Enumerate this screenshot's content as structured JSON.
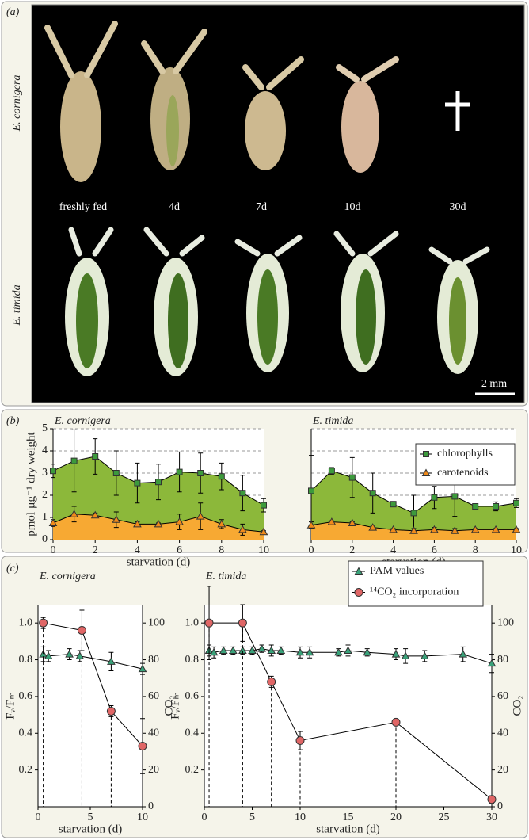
{
  "panels": {
    "a": {
      "label": "(a)",
      "species_top": "E. cornigera",
      "species_bottom": "E. timida",
      "stages": [
        "freshly fed",
        "4d",
        "7d",
        "10d",
        "30d"
      ],
      "scale_bar": "2 mm"
    },
    "b": {
      "label": "(b)"
    },
    "c": {
      "label": "(c)"
    }
  },
  "chart_data": [
    {
      "type": "area",
      "title": "E. cornigera",
      "x_label": "starvation (d)",
      "y_label": "pmol µg⁻¹ dry weight",
      "x": [
        0,
        1,
        2,
        3,
        4,
        5,
        6,
        7,
        8,
        9,
        10
      ],
      "series": [
        {
          "color": "#8cb83a",
          "marker_color": "#3c9a3c",
          "marker": "square",
          "values": [
            3.1,
            3.55,
            3.75,
            3.0,
            2.55,
            2.6,
            3.05,
            3.0,
            2.85,
            2.1,
            1.55
          ],
          "errors": [
            0.3,
            1.4,
            0.8,
            1.0,
            0.9,
            0.8,
            0.9,
            0.9,
            0.6,
            0.8,
            0.3
          ]
        },
        {
          "color": "#f7a933",
          "marker_color": "#f08a1a",
          "marker": "triangle",
          "values": [
            0.75,
            1.15,
            1.1,
            0.9,
            0.7,
            0.7,
            0.8,
            1.05,
            0.7,
            0.45,
            0.35
          ],
          "errors": [
            0.15,
            0.35,
            0.1,
            0.35,
            0.1,
            0.05,
            0.35,
            0.6,
            0.2,
            0.25,
            0.05
          ]
        }
      ],
      "xlim": [
        0,
        10
      ],
      "xticks": [
        0,
        2,
        4,
        6,
        8,
        10
      ],
      "ylim": [
        0,
        5
      ],
      "yticks": [
        0,
        1,
        2,
        3,
        4,
        5
      ],
      "grid": true
    },
    {
      "type": "area",
      "title": "E. timida",
      "x_label": "starvation (d)",
      "x": [
        0,
        1,
        2,
        3,
        4,
        5,
        6,
        7,
        8,
        9,
        10
      ],
      "series": [
        {
          "name": "chlorophylls",
          "color": "#8cb83a",
          "marker_color": "#3c9a3c",
          "marker": "square",
          "values": [
            2.2,
            3.1,
            2.8,
            2.1,
            1.6,
            1.2,
            1.9,
            1.95,
            1.5,
            1.5,
            1.65
          ],
          "errors": [
            1.6,
            0.15,
            0.9,
            0.9,
            0.05,
            0.8,
            0.5,
            0.9,
            0.05,
            0.2,
            0.2
          ]
        },
        {
          "name": "carotenoids",
          "color": "#f7a933",
          "marker_color": "#f08a1a",
          "marker": "triangle",
          "values": [
            0.65,
            0.8,
            0.75,
            0.55,
            0.45,
            0.4,
            0.45,
            0.4,
            0.45,
            0.45,
            0.45
          ],
          "errors": [
            0.15,
            0.05,
            0.05,
            0.1,
            0.05,
            0.1,
            0.1,
            0.1,
            0.05,
            0.05,
            0.05
          ]
        }
      ],
      "xlim": [
        0,
        10
      ],
      "xticks": [
        0,
        2,
        4,
        6,
        8,
        10
      ],
      "ylim": [
        0,
        5
      ],
      "yticks": [
        0,
        1,
        2,
        3,
        4,
        5
      ],
      "ytick_labels": false,
      "grid": true,
      "legend": "upper right"
    },
    {
      "type": "line",
      "title": "E. cornigera",
      "x_label": "starvation (d)",
      "y_label": "Fᵥ/Fₘ",
      "y2_label": "CO₂",
      "series": [
        {
          "color": "#3aa27a",
          "marker": "triangle",
          "x": [
            0.5,
            1,
            3,
            4,
            7,
            10
          ],
          "values": [
            0.83,
            0.82,
            0.83,
            0.82,
            0.79,
            0.75
          ],
          "errors": [
            0.04,
            0.03,
            0.03,
            0.03,
            0.05,
            0.03
          ]
        },
        {
          "color": "#e06666",
          "marker": "circle",
          "axis": "y2",
          "drop_lines": true,
          "x": [
            0.5,
            4.2,
            7,
            10
          ],
          "values": [
            100,
            96,
            52,
            33
          ],
          "errors": [
            3,
            11,
            3,
            15
          ]
        }
      ],
      "xlim": [
        0,
        10
      ],
      "xticks": [
        0,
        5,
        10
      ],
      "ylim": [
        0,
        1.1
      ],
      "yticks": [
        0.2,
        0.4,
        0.6,
        0.8,
        {
          "value": 1,
          "label": "1.0"
        }
      ],
      "y2lim": [
        0,
        110
      ],
      "y2ticks": [
        0,
        20,
        40,
        60,
        80,
        100
      ]
    },
    {
      "type": "line",
      "title": "E. timida",
      "x_label": "starvation (d)",
      "y_label": "Fᵥ/Fₘ",
      "y2_label": "CO₂",
      "series": [
        {
          "name": "PAM values",
          "color": "#3aa27a",
          "marker": "triangle",
          "x": [
            0.5,
            1,
            2,
            3,
            4,
            5,
            6,
            7,
            8,
            10,
            11,
            14,
            15,
            17,
            20,
            21,
            23,
            27,
            30
          ],
          "values": [
            0.85,
            0.84,
            0.85,
            0.85,
            0.85,
            0.85,
            0.86,
            0.85,
            0.85,
            0.84,
            0.84,
            0.84,
            0.85,
            0.84,
            0.83,
            0.82,
            0.82,
            0.83,
            0.78
          ],
          "errors": [
            0.03,
            0.03,
            0.02,
            0.02,
            0.02,
            0.02,
            0.02,
            0.03,
            0.02,
            0.03,
            0.03,
            0.02,
            0.03,
            0.02,
            0.03,
            0.04,
            0.03,
            0.04,
            0.05
          ]
        },
        {
          "name": "¹⁴CO₂ incorporation",
          "color": "#e06666",
          "marker": "circle",
          "axis": "y2",
          "drop_lines": true,
          "x": [
            0.5,
            4,
            7,
            10,
            20,
            30
          ],
          "values": [
            100,
            100,
            68,
            36,
            46,
            4
          ],
          "errors": [
            20,
            10,
            3,
            5,
            2,
            2
          ]
        }
      ],
      "xlim": [
        0,
        30
      ],
      "xticks": [
        0,
        5,
        10,
        15,
        20,
        25,
        30
      ],
      "ylim": [
        0,
        1.1
      ],
      "yticks": [
        0.2,
        0.4,
        0.6,
        0.8,
        {
          "value": 1,
          "label": "1.0"
        }
      ],
      "y2lim": [
        0,
        110
      ],
      "y2ticks": [
        0,
        20,
        40,
        60,
        80,
        100
      ],
      "legend": "upper right"
    }
  ]
}
